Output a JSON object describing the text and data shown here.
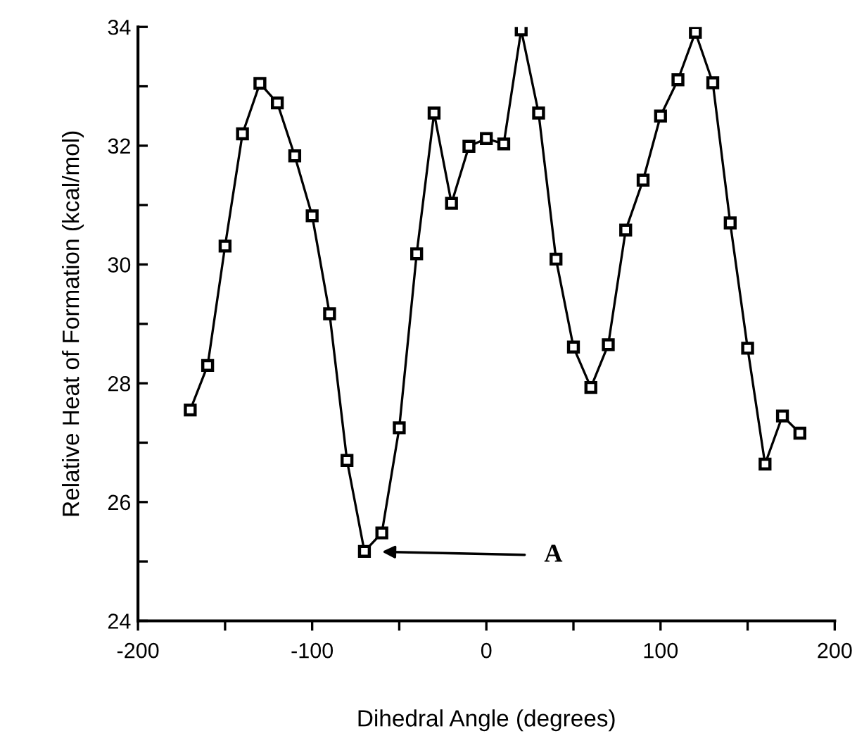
{
  "chart_data": {
    "type": "line",
    "xlabel": "Dihedral Angle (degrees)",
    "ylabel": "Relative Heat of Formation (kcal/mol)",
    "xlim": [
      -200,
      200
    ],
    "ylim": [
      24,
      34
    ],
    "xticks": [
      -200,
      {
        "value": -150,
        "label": null
      },
      -100,
      {
        "value": -50,
        "label": null
      },
      0,
      {
        "value": 50,
        "label": null
      },
      100,
      {
        "value": 150,
        "label": null
      },
      200
    ],
    "yticks": [
      24,
      {
        "value": 25,
        "label": null
      },
      26,
      {
        "value": 27,
        "label": null
      },
      28,
      {
        "value": 29,
        "label": null
      },
      30,
      {
        "value": 31,
        "label": null
      },
      32,
      {
        "value": 33,
        "label": null
      },
      34
    ],
    "grid": false,
    "legend": false,
    "marker": "square",
    "line_style": "solid",
    "x": [
      -170,
      -160,
      -150,
      -140,
      -130,
      -120,
      -110,
      -100,
      -90,
      -80,
      -70,
      -60,
      -50,
      -40,
      -30,
      -20,
      -10,
      0,
      10,
      20,
      30,
      40,
      50,
      60,
      70,
      80,
      90,
      100,
      110,
      120,
      130,
      140,
      150,
      160,
      170,
      180
    ],
    "series": [
      {
        "color": "#000000",
        "values": [
          27.55,
          28.3,
          30.31,
          32.2,
          33.05,
          32.72,
          31.83,
          30.82,
          29.17,
          26.7,
          25.17,
          25.48,
          27.25,
          30.18,
          32.55,
          31.03,
          31.99,
          32.12,
          32.03,
          33.95,
          32.55,
          30.09,
          28.61,
          27.93,
          28.65,
          30.58,
          31.42,
          32.5,
          33.11,
          33.91,
          33.06,
          30.7,
          28.59,
          26.64,
          27.45,
          27.16
        ]
      }
    ],
    "annotations": [
      "A"
    ]
  }
}
